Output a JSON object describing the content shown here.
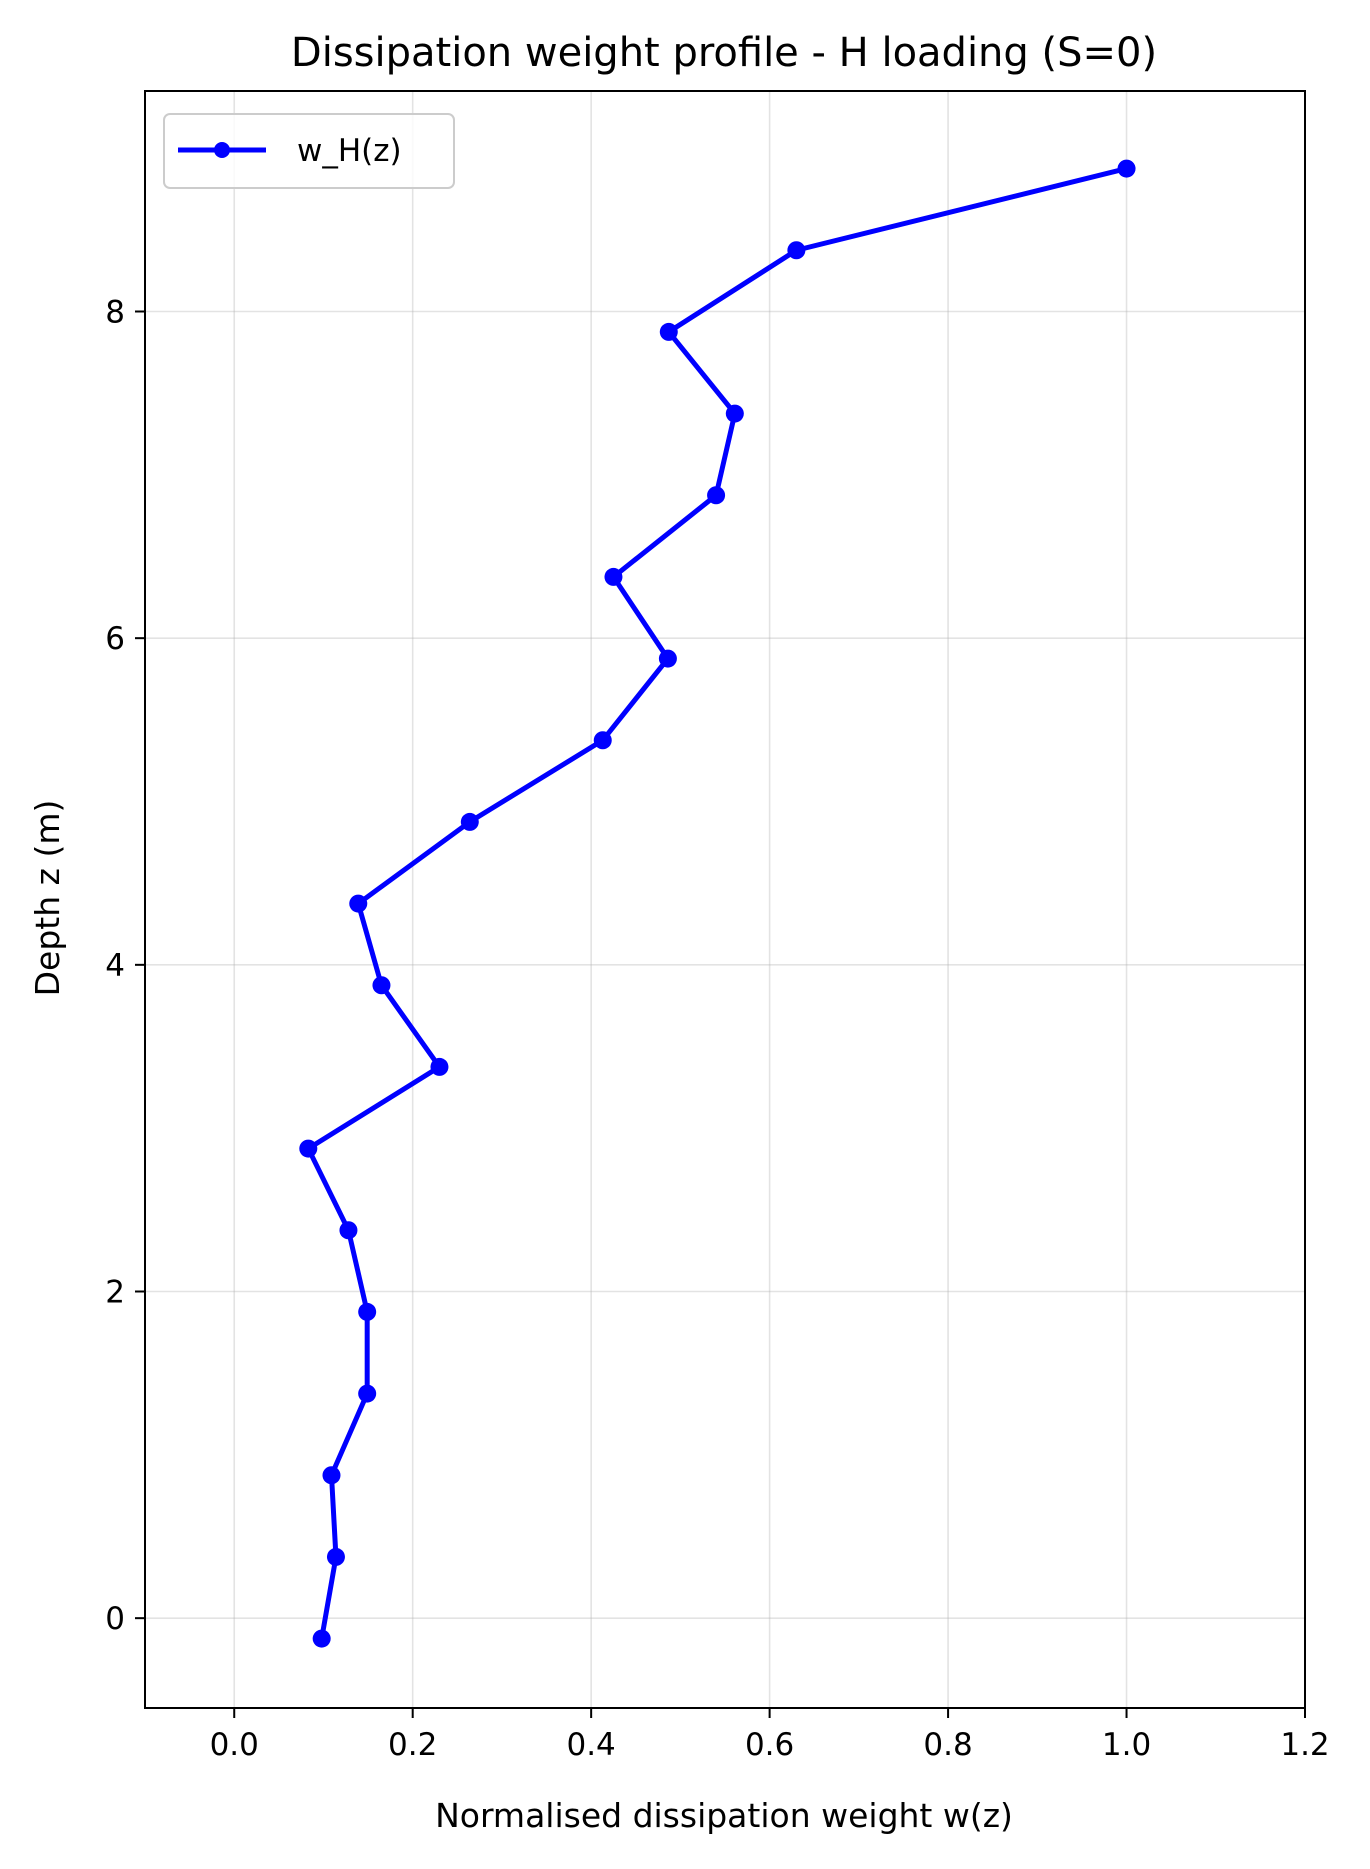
{
  "chart_data": {
    "type": "line",
    "title": "Dissipation weight profile - H loading (S=0)",
    "xlabel": "Normalised dissipation weight w(z)",
    "ylabel": "Depth z (m)",
    "xlim": [
      -0.1,
      1.2
    ],
    "ylim": [
      -0.55,
      9.35
    ],
    "xticks": [
      0.0,
      0.2,
      0.4,
      0.6,
      0.8,
      1.0,
      1.2
    ],
    "xtick_labels": [
      "0.0",
      "0.2",
      "0.4",
      "0.6",
      "0.8",
      "1.0",
      "1.2"
    ],
    "yticks": [
      0,
      2,
      4,
      6,
      8
    ],
    "ytick_labels": [
      "0",
      "2",
      "4",
      "6",
      "8"
    ],
    "grid": true,
    "legend_position": "top-left",
    "series": [
      {
        "name": "w_H(z)",
        "color": "#0000ff",
        "marker": "circle",
        "points": [
          {
            "x": 0.098,
            "y": -0.125
          },
          {
            "x": 0.114,
            "y": 0.375
          },
          {
            "x": 0.109,
            "y": 0.875
          },
          {
            "x": 0.149,
            "y": 1.375
          },
          {
            "x": 0.149,
            "y": 1.875
          },
          {
            "x": 0.128,
            "y": 2.375
          },
          {
            "x": 0.083,
            "y": 2.875
          },
          {
            "x": 0.23,
            "y": 3.375
          },
          {
            "x": 0.165,
            "y": 3.875
          },
          {
            "x": 0.139,
            "y": 4.375
          },
          {
            "x": 0.264,
            "y": 4.875
          },
          {
            "x": 0.413,
            "y": 5.375
          },
          {
            "x": 0.486,
            "y": 5.875
          },
          {
            "x": 0.425,
            "y": 6.375
          },
          {
            "x": 0.54,
            "y": 6.875
          },
          {
            "x": 0.561,
            "y": 7.375
          },
          {
            "x": 0.487,
            "y": 7.875
          },
          {
            "x": 0.63,
            "y": 8.375
          },
          {
            "x": 1.0,
            "y": 8.875
          }
        ]
      }
    ]
  }
}
